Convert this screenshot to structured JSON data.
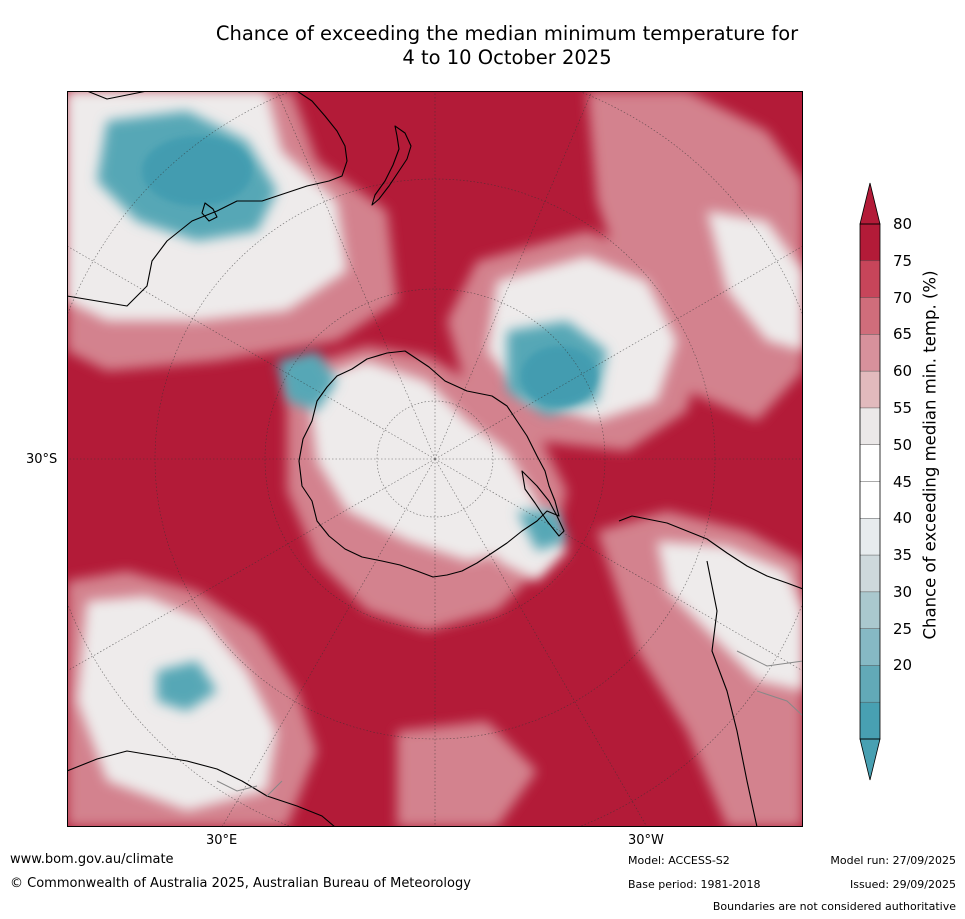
{
  "title": {
    "line1": "Chance of exceeding the median minimum temperature for",
    "line2": "4 to 10 October 2025"
  },
  "map": {
    "axis_labels": {
      "lat": "30°S",
      "lon_left": "30°E",
      "lon_right": "30°W"
    }
  },
  "colorbar": {
    "title": "Chance of exceeding median min. temp. (%)",
    "ticks": [
      "80",
      "75",
      "70",
      "65",
      "60",
      "55",
      "50",
      "45",
      "40",
      "35",
      "30",
      "25",
      "20"
    ],
    "colors": [
      "#b31b38",
      "#c7455a",
      "#d06d7b",
      "#d7919c",
      "#e2babd",
      "#ebe8e8",
      "#ffffff",
      "#ffffff",
      "#e7ecee",
      "#ced9dc",
      "#aac8ce",
      "#86b9c4",
      "#62a9b7",
      "#48a0b2"
    ],
    "top_arrow_color": "#b31b38",
    "bottom_arrow_color": "#48a0b2"
  },
  "footer": {
    "url": "www.bom.gov.au/climate",
    "copyright": "© Commonwealth of Australia 2025, Australian Bureau of Meteorology",
    "model": "Model: ACCESS-S2",
    "base_period": "Base period: 1981-2018",
    "model_run": "Model run: 27/09/2025",
    "issued": "Issued: 29/09/2025",
    "disclaimer": "Boundaries are not considered authoritative"
  }
}
